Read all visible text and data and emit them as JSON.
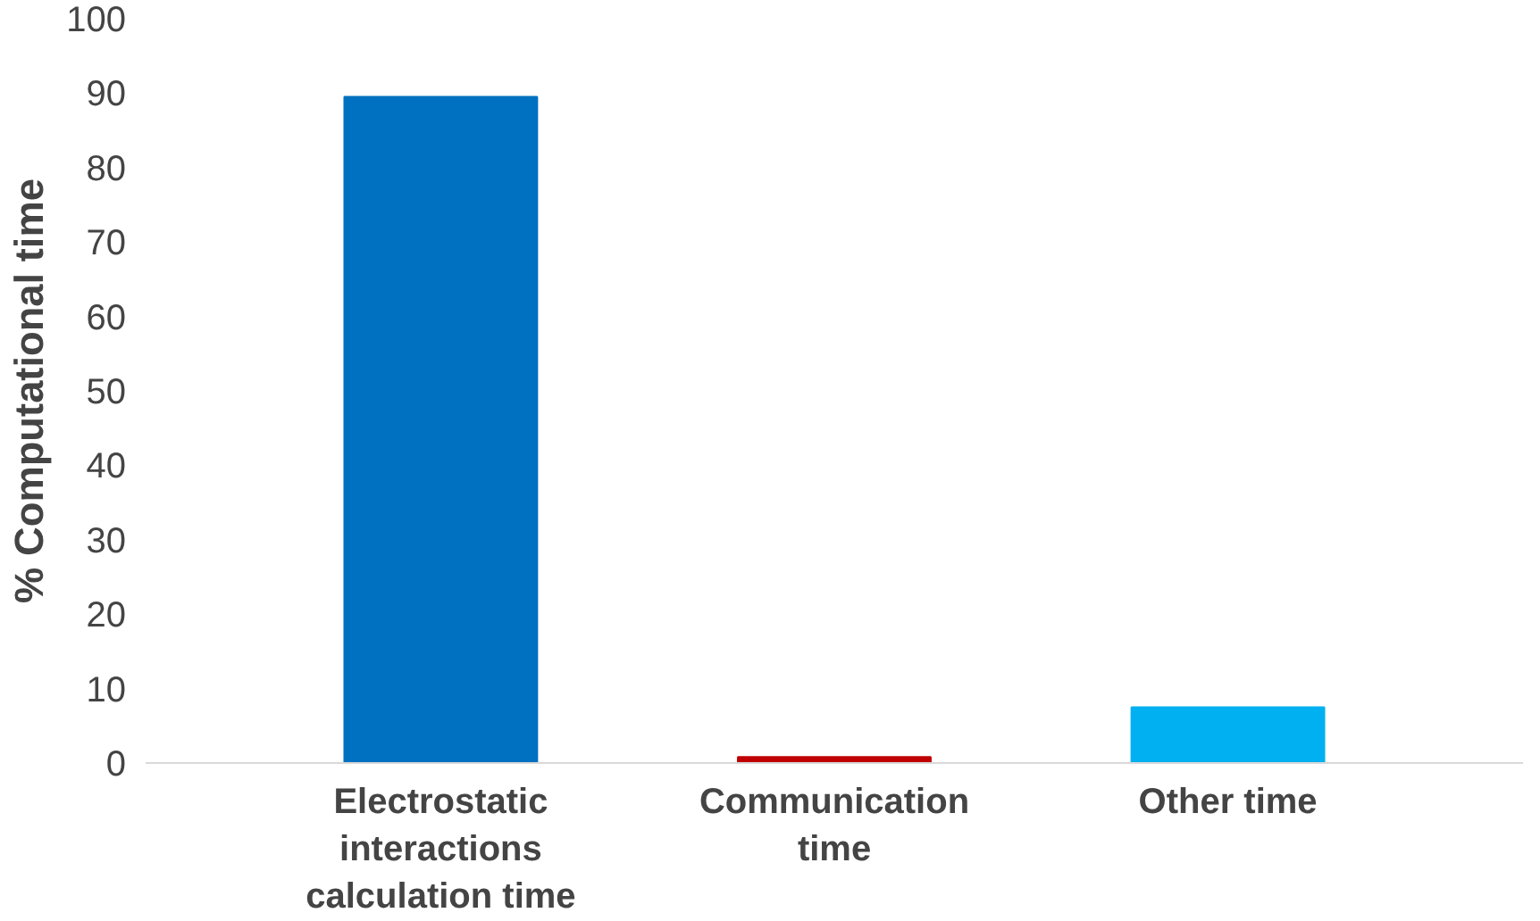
{
  "chart_data": {
    "type": "bar",
    "ylabel": "% Computational time",
    "categories": [
      "Electrostatic interactions calculation time",
      "Communication time",
      "Other time"
    ],
    "values": [
      89.5,
      0.8,
      7.5
    ],
    "colors": [
      "#0070c0",
      "#c00000",
      "#00b0f0"
    ],
    "ylim": [
      0,
      100
    ],
    "yticks": [
      0,
      10,
      20,
      30,
      40,
      50,
      60,
      70,
      80,
      90,
      100
    ],
    "grid": false
  }
}
